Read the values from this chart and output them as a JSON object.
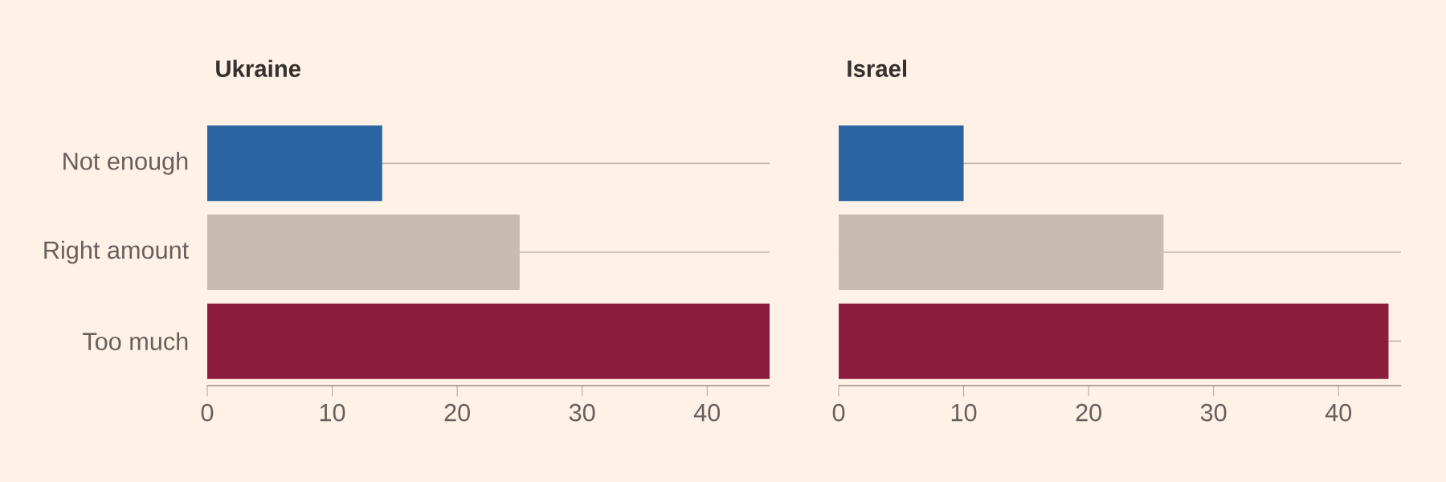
{
  "chart_data": [
    {
      "type": "bar",
      "orientation": "horizontal",
      "title": "Ukraine",
      "categories": [
        "Not enough",
        "Right amount",
        "Too much"
      ],
      "values": [
        14,
        25,
        45
      ],
      "colors": [
        "#2a65a2",
        "#c8bcb1",
        "#8c1c3e"
      ],
      "xlim": [
        0,
        45
      ],
      "xticks": [
        0,
        10,
        20,
        30,
        40
      ],
      "grid": "y"
    },
    {
      "type": "bar",
      "orientation": "horizontal",
      "title": "Israel",
      "categories": [
        null,
        null,
        null
      ],
      "values": [
        10,
        26,
        44
      ],
      "colors": [
        "#2a65a2",
        "#c8bcb1",
        "#8c1c3e"
      ],
      "xlim": [
        0,
        45
      ],
      "xticks": [
        0,
        10,
        20,
        30,
        40
      ],
      "grid": "y",
      "tick_labels": "x"
    }
  ]
}
